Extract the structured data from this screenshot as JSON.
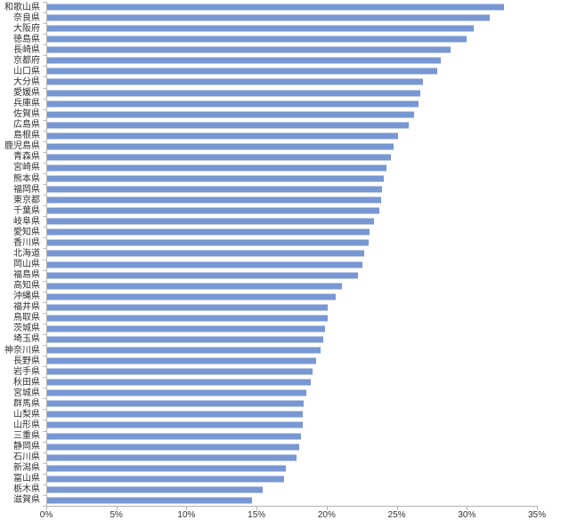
{
  "chart_data": {
    "type": "bar",
    "orientation": "horizontal",
    "categories": [
      "和歌山県",
      "奈良県",
      "大阪府",
      "徳島県",
      "長崎県",
      "京都府",
      "山口県",
      "大分県",
      "愛媛県",
      "兵庫県",
      "佐賀県",
      "広島県",
      "島根県",
      "鹿児島県",
      "青森県",
      "宮崎県",
      "熊本県",
      "福岡県",
      "東京都",
      "千葉県",
      "岐阜県",
      "愛知県",
      "香川県",
      "北海道",
      "岡山県",
      "福島県",
      "高知県",
      "沖縄県",
      "福井県",
      "鳥取県",
      "茨城県",
      "埼玉県",
      "神奈川県",
      "長野県",
      "岩手県",
      "秋田県",
      "宮城県",
      "群馬県",
      "山梨県",
      "山形県",
      "三重県",
      "静岡県",
      "石川県",
      "新潟県",
      "富山県",
      "栃木県",
      "滋賀県"
    ],
    "values": [
      32.6,
      31.6,
      30.4,
      29.9,
      28.8,
      28.1,
      27.8,
      26.8,
      26.6,
      26.5,
      26.2,
      25.8,
      25.0,
      24.7,
      24.5,
      24.2,
      24.0,
      23.9,
      23.8,
      23.7,
      23.3,
      23.0,
      22.9,
      22.6,
      22.5,
      22.2,
      21.0,
      20.6,
      20.0,
      20.0,
      19.8,
      19.7,
      19.5,
      19.2,
      18.9,
      18.8,
      18.5,
      18.3,
      18.2,
      18.2,
      18.1,
      18.0,
      17.8,
      17.0,
      16.9,
      15.4,
      14.6
    ],
    "value_suffix": "%",
    "xlim": [
      0,
      35
    ],
    "x_ticks": [
      "0%",
      "5%",
      "10%",
      "15%",
      "20%",
      "25%",
      "30%",
      "35%"
    ],
    "grid": false,
    "legend": "none",
    "bar_color": "#7897D3",
    "axis_color": "#b3b3b3",
    "text_color": "#333333"
  }
}
